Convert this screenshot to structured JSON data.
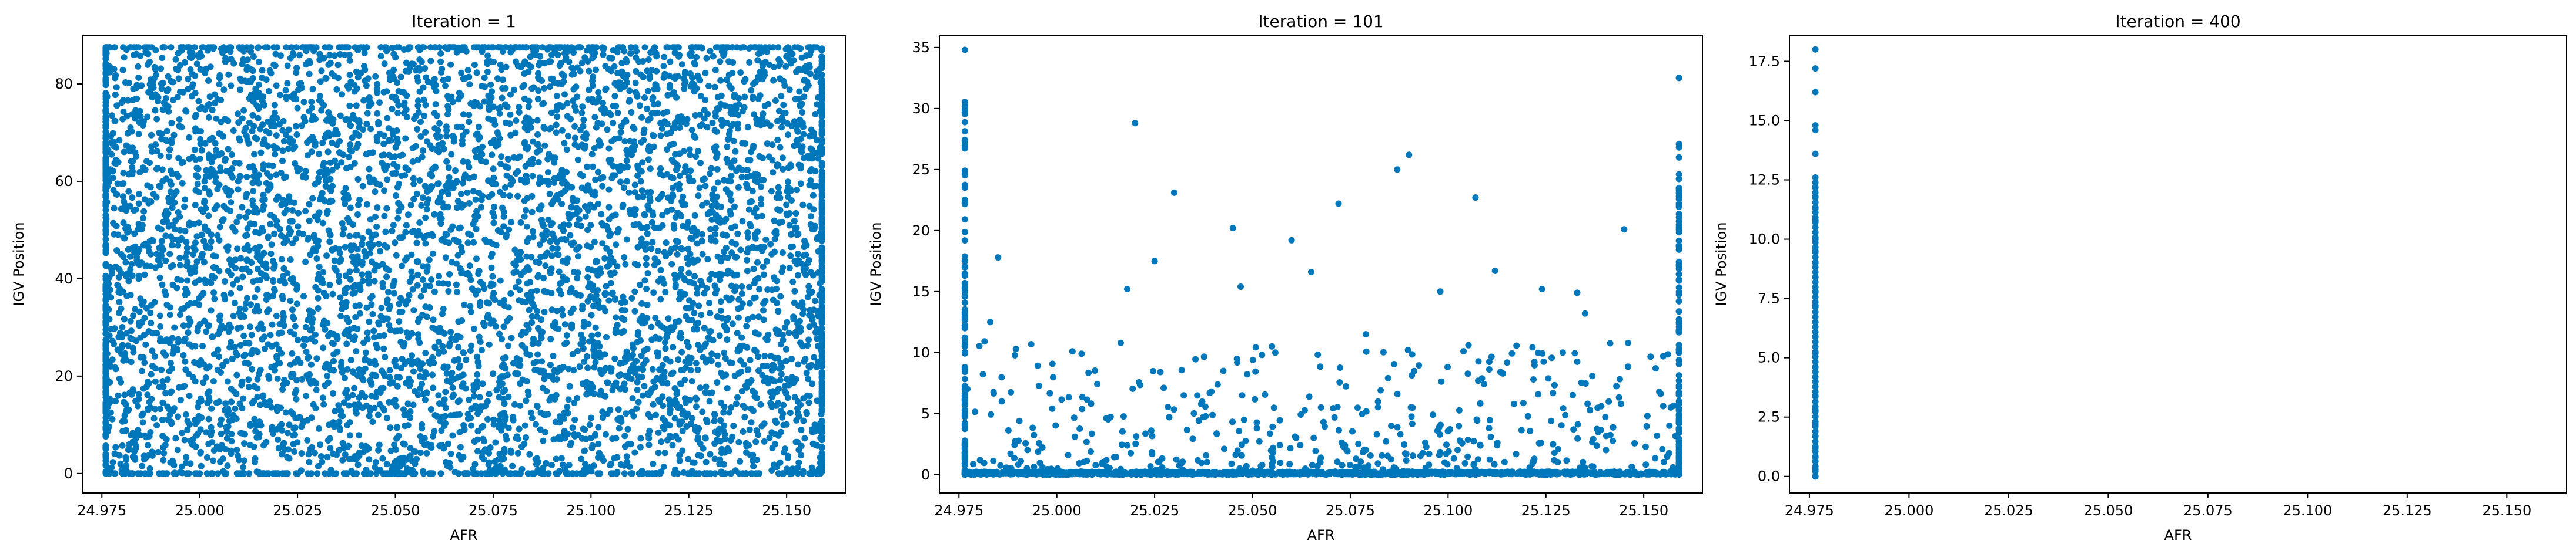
{
  "chart_data": [
    {
      "type": "scatter",
      "title": "Iteration = 1",
      "xlabel": "AFR",
      "ylabel": "IGV Position",
      "xlim": [
        24.97,
        25.165
      ],
      "ylim": [
        -4,
        90
      ],
      "xticks": [
        24.975,
        25.0,
        25.025,
        25.05,
        25.075,
        25.1,
        25.125,
        25.15
      ],
      "xtick_labels": [
        "24.975",
        "25.000",
        "25.025",
        "25.050",
        "25.075",
        "25.100",
        "25.125",
        "25.150"
      ],
      "yticks": [
        0,
        20,
        40,
        60,
        80
      ],
      "ytick_labels": [
        "0",
        "20",
        "40",
        "60",
        "80"
      ],
      "grid": false,
      "color": "#0077bb",
      "distribution": {
        "x_range": [
          24.976,
          25.159
        ],
        "y_range": [
          0,
          87.5
        ],
        "description_points": 6000
      },
      "series": [
        {
          "x": [
            24.976,
            25.159,
            25.0,
            25.05,
            25.1,
            25.13
          ],
          "y": [
            87.5,
            0,
            45,
            20,
            70,
            10
          ]
        }
      ]
    },
    {
      "type": "scatter",
      "title": "Iteration = 101",
      "xlabel": "AFR",
      "ylabel": "IGV Position",
      "xlim": [
        24.97,
        25.165
      ],
      "ylim": [
        -1.5,
        36
      ],
      "xticks": [
        24.975,
        25.0,
        25.025,
        25.05,
        25.075,
        25.1,
        25.125,
        25.15
      ],
      "xtick_labels": [
        "24.975",
        "25.000",
        "25.025",
        "25.050",
        "25.075",
        "25.100",
        "25.125",
        "25.150"
      ],
      "yticks": [
        0,
        5,
        10,
        15,
        20,
        25,
        30,
        35
      ],
      "ytick_labels": [
        "0",
        "5",
        "10",
        "15",
        "20",
        "25",
        "30",
        "35"
      ],
      "grid": false,
      "color": "#0077bb",
      "series": [
        {
          "x": [
            24.9765,
            25.159,
            24.985,
            25.02,
            25.03,
            25.045,
            25.06,
            25.072,
            25.087,
            25.09,
            25.107,
            25.145,
            25.112,
            25.124,
            25.133,
            25.025,
            25.018,
            24.983,
            25.047,
            25.065,
            25.098,
            25.135,
            25.004,
            25.055,
            25.079
          ],
          "y": [
            34.8,
            32.5,
            17.8,
            28.8,
            23.1,
            20.2,
            19.2,
            22.2,
            25.0,
            26.2,
            22.7,
            20.1,
            16.7,
            15.2,
            14.9,
            17.5,
            15.2,
            12.5,
            15.4,
            16.6,
            15.0,
            13.2,
            10.1,
            10.5,
            11.5
          ]
        }
      ]
    },
    {
      "type": "scatter",
      "title": "Iteration = 400",
      "xlabel": "AFR",
      "ylabel": "IGV Position",
      "xlim": [
        24.97,
        25.165
      ],
      "ylim": [
        -0.7,
        18.6
      ],
      "xticks": [
        24.975,
        25.0,
        25.025,
        25.05,
        25.075,
        25.1,
        25.125,
        25.15
      ],
      "xtick_labels": [
        "24.975",
        "25.000",
        "25.025",
        "25.050",
        "25.075",
        "25.100",
        "25.125",
        "25.150"
      ],
      "yticks": [
        0.0,
        2.5,
        5.0,
        7.5,
        10.0,
        12.5,
        15.0,
        17.5
      ],
      "ytick_labels": [
        "0.0",
        "2.5",
        "5.0",
        "7.5",
        "10.0",
        "12.5",
        "15.0",
        "17.5"
      ],
      "grid": false,
      "color": "#0077bb",
      "series": [
        {
          "x": [
            24.9765,
            24.9765,
            24.9765,
            24.9765,
            24.9765,
            24.9765,
            24.9765,
            24.9765,
            24.9765,
            24.9765,
            24.9765,
            24.9765,
            24.9765,
            24.9765,
            24.9765,
            24.9765,
            24.9765,
            24.9765,
            24.9765,
            24.9765,
            24.9765,
            24.9765,
            24.9765,
            24.9765,
            24.9765,
            24.9765,
            24.9765,
            24.9765,
            24.9765,
            24.9765
          ],
          "y": [
            18.0,
            17.2,
            16.2,
            14.8,
            14.6,
            13.6,
            12.6,
            12.2,
            11.8,
            11.3,
            10.8,
            10.0,
            9.5,
            9.0,
            8.4,
            7.8,
            7.2,
            6.5,
            5.9,
            5.2,
            4.6,
            4.0,
            3.4,
            2.8,
            2.2,
            1.7,
            1.2,
            0.8,
            0.3,
            0.0
          ]
        }
      ]
    }
  ]
}
